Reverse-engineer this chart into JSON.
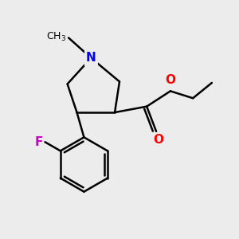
{
  "background_color": "#ececec",
  "bond_color": "#000000",
  "N_color": "#0000ff",
  "O_color": "#ff0000",
  "F_color": "#cc00cc",
  "line_width": 1.8,
  "figsize": [
    3.0,
    3.0
  ],
  "dpi": 100,
  "xlim": [
    0,
    10
  ],
  "ylim": [
    0,
    10
  ]
}
